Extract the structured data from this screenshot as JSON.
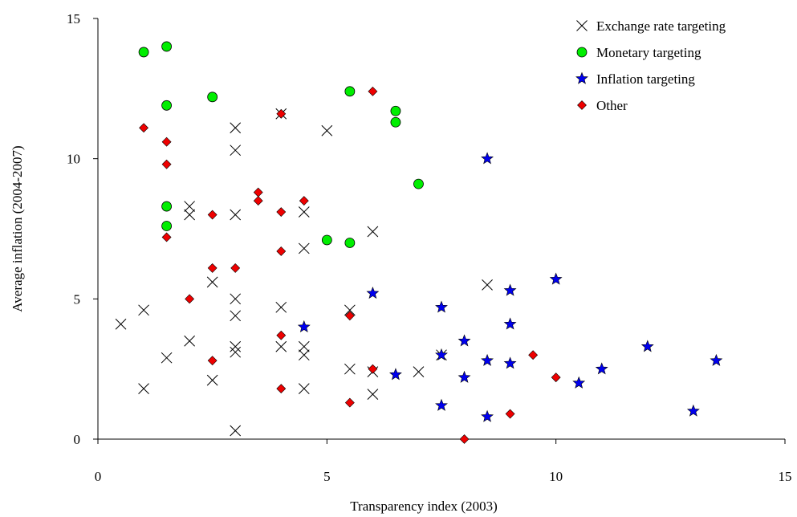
{
  "chart_data": {
    "type": "scatter",
    "title": "",
    "xlabel": "Transparency index (2003)",
    "ylabel": "Average inflation (2004-2007)",
    "xlim": [
      0,
      15
    ],
    "ylim": [
      0,
      15
    ],
    "xticks": [
      0,
      5,
      10,
      15
    ],
    "yticks": [
      0,
      5,
      10,
      15
    ],
    "grid": false,
    "legend_position": "top-right",
    "series": [
      {
        "name": "Exchange rate targeting",
        "marker": "x",
        "color": "#000000",
        "points": [
          [
            0.5,
            4.1
          ],
          [
            1,
            4.6
          ],
          [
            1,
            1.8
          ],
          [
            1.5,
            2.9
          ],
          [
            2,
            3.5
          ],
          [
            2,
            8.3
          ],
          [
            2,
            8.0
          ],
          [
            2.5,
            5.6
          ],
          [
            2.5,
            2.1
          ],
          [
            3,
            11.1
          ],
          [
            3,
            10.3
          ],
          [
            3,
            8.0
          ],
          [
            3,
            5.0
          ],
          [
            3,
            4.4
          ],
          [
            3,
            3.3
          ],
          [
            3,
            3.1
          ],
          [
            3,
            0.3
          ],
          [
            4,
            4.7
          ],
          [
            4,
            3.3
          ],
          [
            4,
            11.6
          ],
          [
            4.5,
            8.1
          ],
          [
            4.5,
            6.8
          ],
          [
            4.5,
            3.3
          ],
          [
            4.5,
            3.0
          ],
          [
            4.5,
            1.8
          ],
          [
            5,
            11.0
          ],
          [
            5.5,
            4.6
          ],
          [
            5.5,
            2.5
          ],
          [
            6,
            7.4
          ],
          [
            6,
            2.4
          ],
          [
            6,
            1.6
          ],
          [
            7,
            2.4
          ],
          [
            7.5,
            3.0
          ],
          [
            8.5,
            5.5
          ]
        ]
      },
      {
        "name": "Monetary targeting",
        "marker": "circle",
        "color": "#00ee00",
        "points": [
          [
            1,
            13.8
          ],
          [
            1.5,
            14.0
          ],
          [
            1.5,
            11.9
          ],
          [
            1.5,
            8.3
          ],
          [
            1.5,
            7.6
          ],
          [
            2.5,
            12.2
          ],
          [
            5,
            7.1
          ],
          [
            5.5,
            12.4
          ],
          [
            5.5,
            7.0
          ],
          [
            6.5,
            11.7
          ],
          [
            6.5,
            11.3
          ],
          [
            7,
            9.1
          ]
        ]
      },
      {
        "name": "Inflation targeting",
        "marker": "star",
        "color": "#0000ee",
        "points": [
          [
            4.5,
            4.0
          ],
          [
            6,
            5.2
          ],
          [
            6.5,
            2.3
          ],
          [
            7.5,
            4.7
          ],
          [
            7.5,
            3.0
          ],
          [
            7.5,
            1.2
          ],
          [
            8,
            3.5
          ],
          [
            8,
            2.2
          ],
          [
            8.5,
            10.0
          ],
          [
            8.5,
            2.8
          ],
          [
            8.5,
            0.8
          ],
          [
            9,
            5.3
          ],
          [
            9,
            4.1
          ],
          [
            9,
            2.7
          ],
          [
            10,
            5.7
          ],
          [
            10.5,
            2.0
          ],
          [
            11,
            2.5
          ],
          [
            12,
            3.3
          ],
          [
            13,
            1.0
          ],
          [
            13.5,
            2.8
          ]
        ]
      },
      {
        "name": "Other",
        "marker": "diamond",
        "color": "#ee0000",
        "points": [
          [
            1,
            11.1
          ],
          [
            1.5,
            10.6
          ],
          [
            1.5,
            9.8
          ],
          [
            1.5,
            7.2
          ],
          [
            2,
            5.0
          ],
          [
            2.5,
            8.0
          ],
          [
            2.5,
            6.1
          ],
          [
            2.5,
            2.8
          ],
          [
            3,
            6.1
          ],
          [
            3.5,
            8.8
          ],
          [
            3.5,
            8.5
          ],
          [
            4,
            11.6
          ],
          [
            4,
            8.1
          ],
          [
            4,
            6.7
          ],
          [
            4,
            3.7
          ],
          [
            4,
            1.8
          ],
          [
            4.5,
            8.5
          ],
          [
            5.5,
            4.4
          ],
          [
            5.5,
            1.3
          ],
          [
            6,
            12.4
          ],
          [
            6,
            2.5
          ],
          [
            8,
            0.0
          ],
          [
            9,
            0.9
          ],
          [
            9.5,
            3.0
          ],
          [
            10,
            2.2
          ]
        ]
      }
    ]
  }
}
